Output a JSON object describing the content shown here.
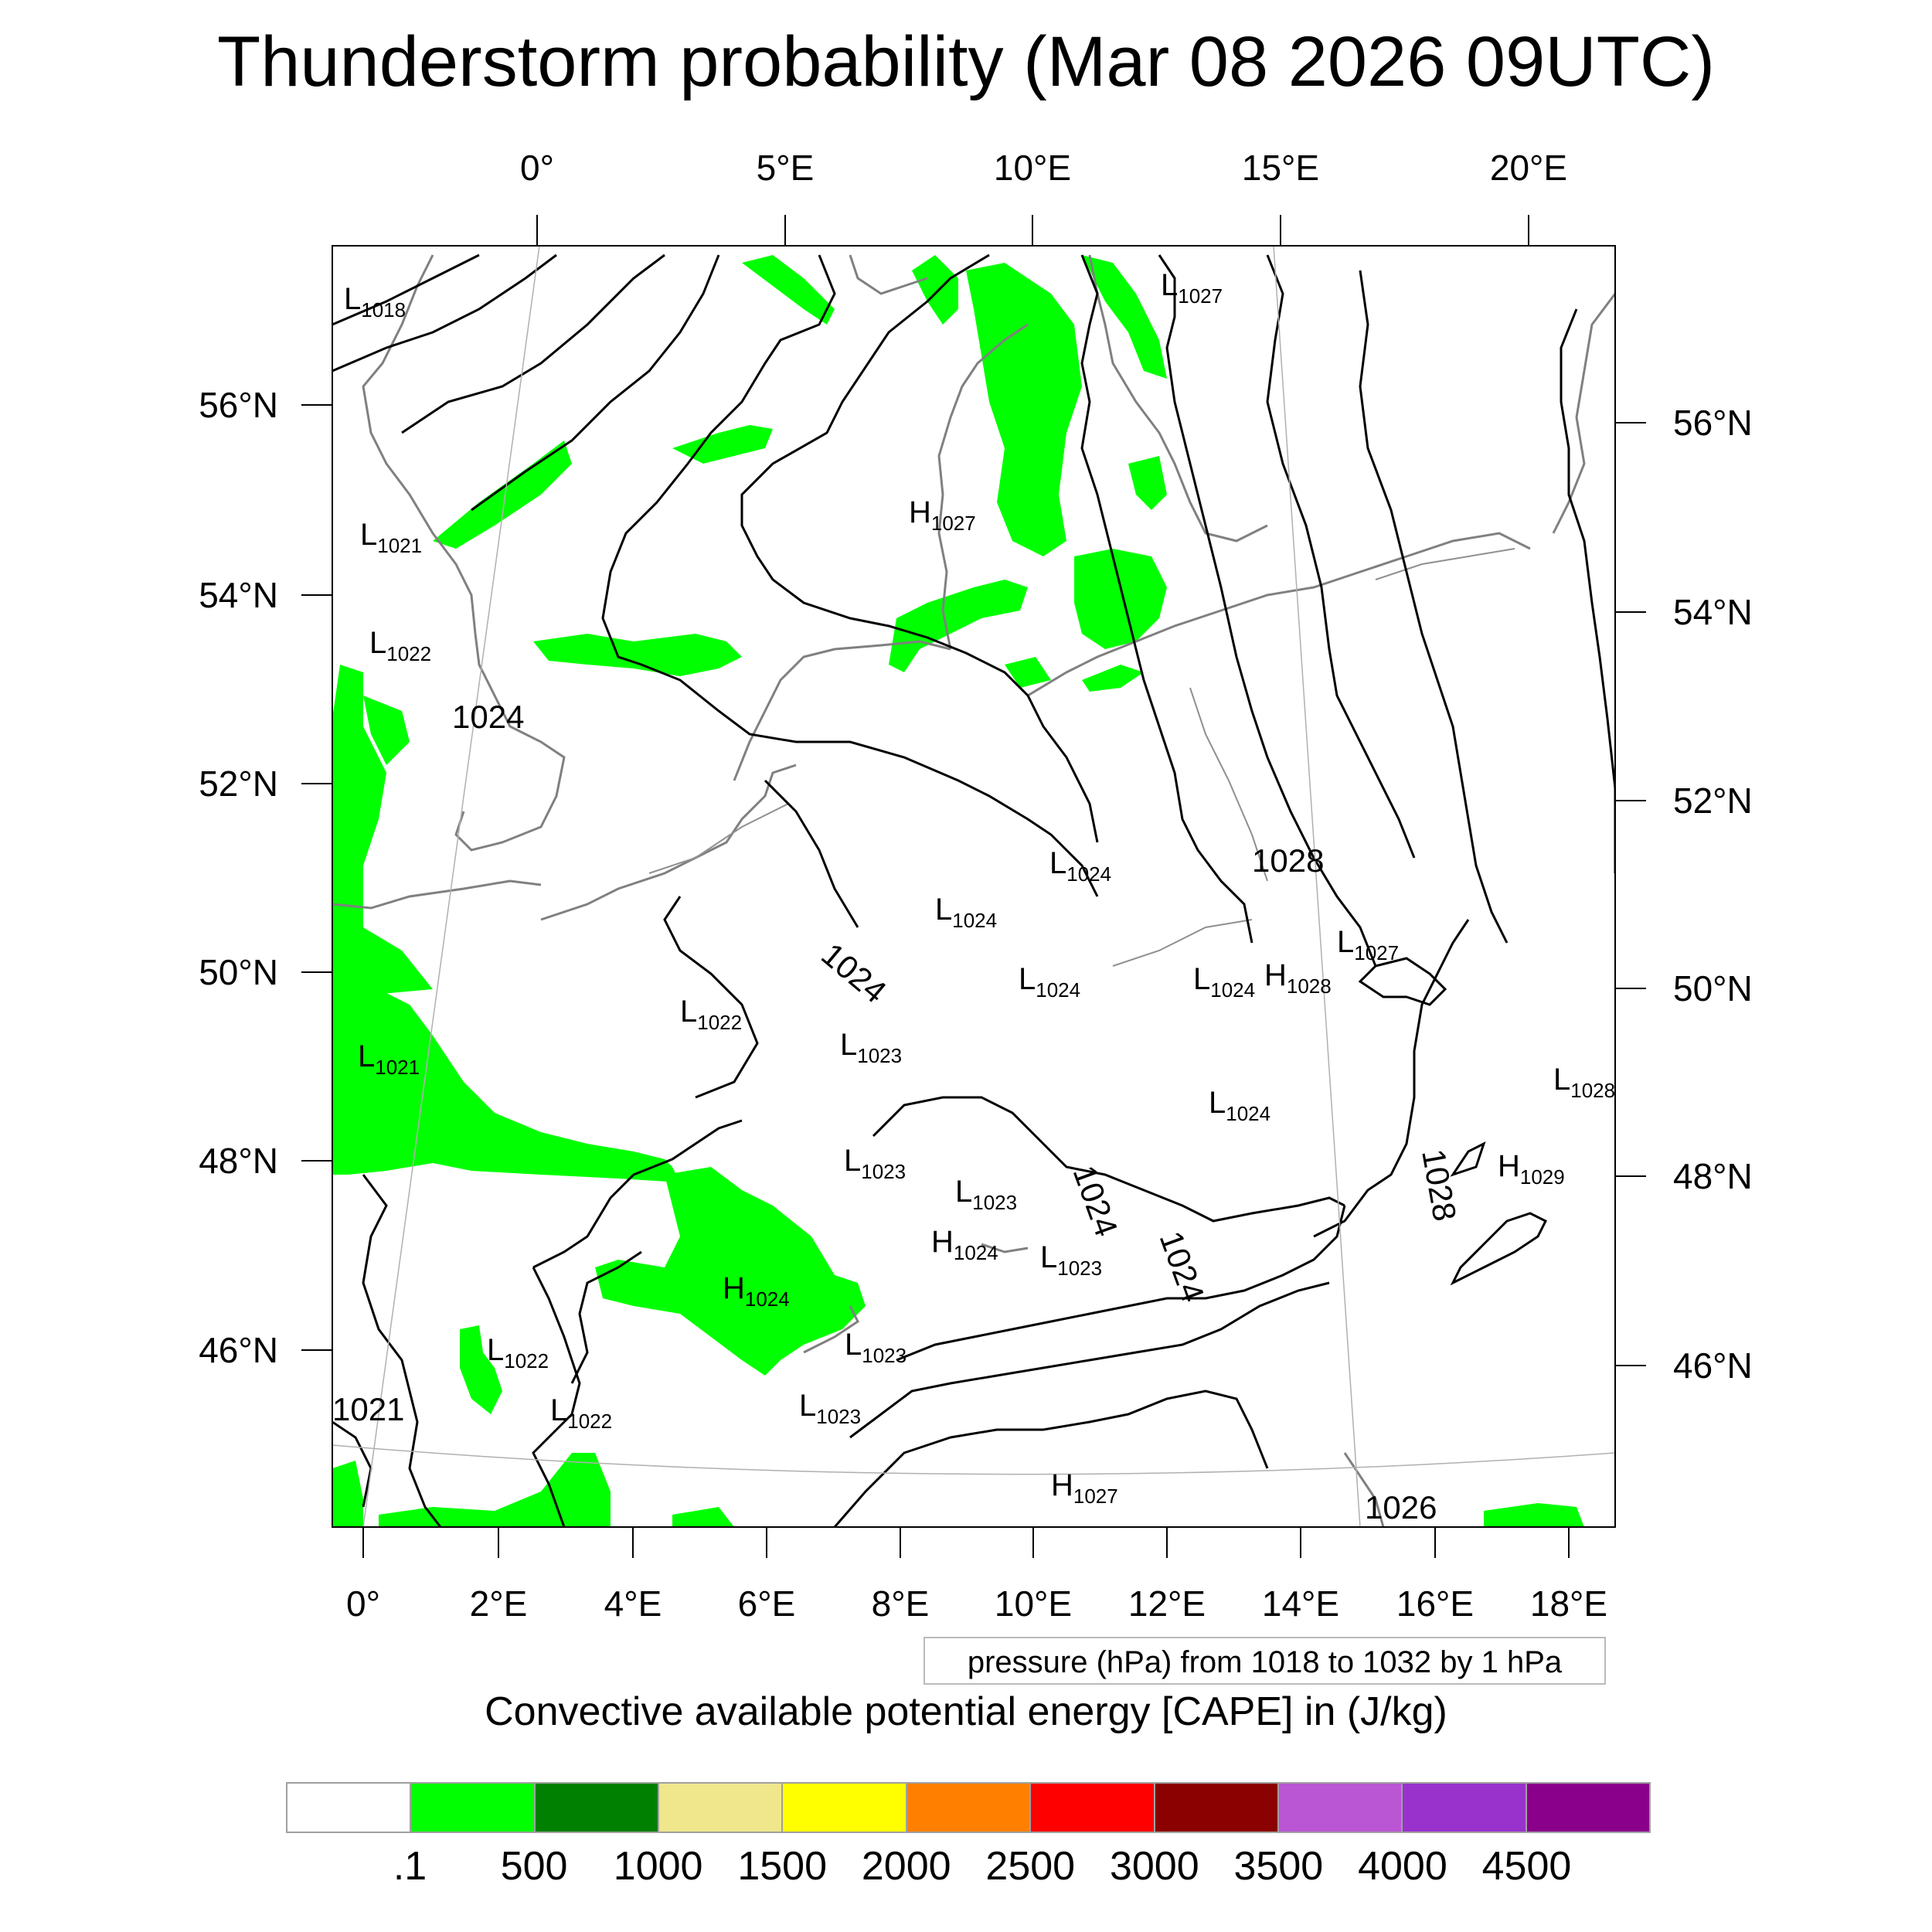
{
  "title": "Thunderstorm probability (Mar 08 2026 09UTC)",
  "top_lon_labels": [
    "0°",
    "5°E",
    "10°E",
    "15°E",
    "20°E"
  ],
  "bottom_lon_labels": [
    "0°",
    "2°E",
    "4°E",
    "6°E",
    "8°E",
    "10°E",
    "12°E",
    "14°E",
    "16°E",
    "18°E"
  ],
  "left_lat_labels": [
    "56°N",
    "54°N",
    "52°N",
    "50°N",
    "48°N",
    "46°N"
  ],
  "right_lat_labels": [
    "56°N",
    "54°N",
    "52°N",
    "50°N",
    "48°N",
    "46°N"
  ],
  "pressure_info": "pressure (hPa) from 1018 to 1032 by 1 hPa",
  "colorbar_title": "Convective available potential energy [CAPE] in (J/kg)",
  "colorbar": {
    "colors": [
      "#ffffff",
      "#00ff00",
      "#008000",
      "#f0e68c",
      "#ffff00",
      "#ff8000",
      "#ff0000",
      "#8b0000",
      "#ba55d3",
      "#9932cc",
      "#8b008b"
    ],
    "labels": [
      ".1",
      "500",
      "1000",
      "1500",
      "2000",
      "2500",
      "3000",
      "3500",
      "4000",
      "4500"
    ]
  },
  "map": {
    "cape_fill_color": "#00ff00",
    "contour_color": "#000000",
    "coast_color": "#808080",
    "pressure_labels": [
      {
        "kind": "L",
        "value": "1018"
      },
      {
        "kind": "L",
        "value": "1027"
      },
      {
        "kind": "H",
        "value": "1027"
      },
      {
        "kind": "L",
        "value": "1021"
      },
      {
        "kind": "L",
        "value": "1022"
      },
      {
        "kind": "C",
        "value": "1024"
      },
      {
        "kind": "L",
        "value": "1024"
      },
      {
        "kind": "C",
        "value": "1028"
      },
      {
        "kind": "L",
        "value": "1024"
      },
      {
        "kind": "C",
        "value": "1024"
      },
      {
        "kind": "L",
        "value": "1027"
      },
      {
        "kind": "L",
        "value": "1024"
      },
      {
        "kind": "L",
        "value": "1024"
      },
      {
        "kind": "H",
        "value": "1028"
      },
      {
        "kind": "L",
        "value": "1022"
      },
      {
        "kind": "L",
        "value": "1021"
      },
      {
        "kind": "L",
        "value": "1023"
      },
      {
        "kind": "L",
        "value": "1024"
      },
      {
        "kind": "L",
        "value": "1023"
      },
      {
        "kind": "C",
        "value": "1024"
      },
      {
        "kind": "C",
        "value": "1028"
      },
      {
        "kind": "H",
        "value": "1029"
      },
      {
        "kind": "L",
        "value": "1023"
      },
      {
        "kind": "H",
        "value": "1024"
      },
      {
        "kind": "L",
        "value": "1023"
      },
      {
        "kind": "C",
        "value": "1024"
      },
      {
        "kind": "H",
        "value": "1024"
      },
      {
        "kind": "L",
        "value": "1022"
      },
      {
        "kind": "L",
        "value": "1023"
      },
      {
        "kind": "L",
        "value": "1023"
      },
      {
        "kind": "L",
        "value": "1022"
      },
      {
        "kind": "H",
        "value": "1027"
      },
      {
        "kind": "C",
        "value": "1021"
      },
      {
        "kind": "C",
        "value": "1026"
      },
      {
        "kind": "L",
        "value": "1028"
      }
    ]
  }
}
